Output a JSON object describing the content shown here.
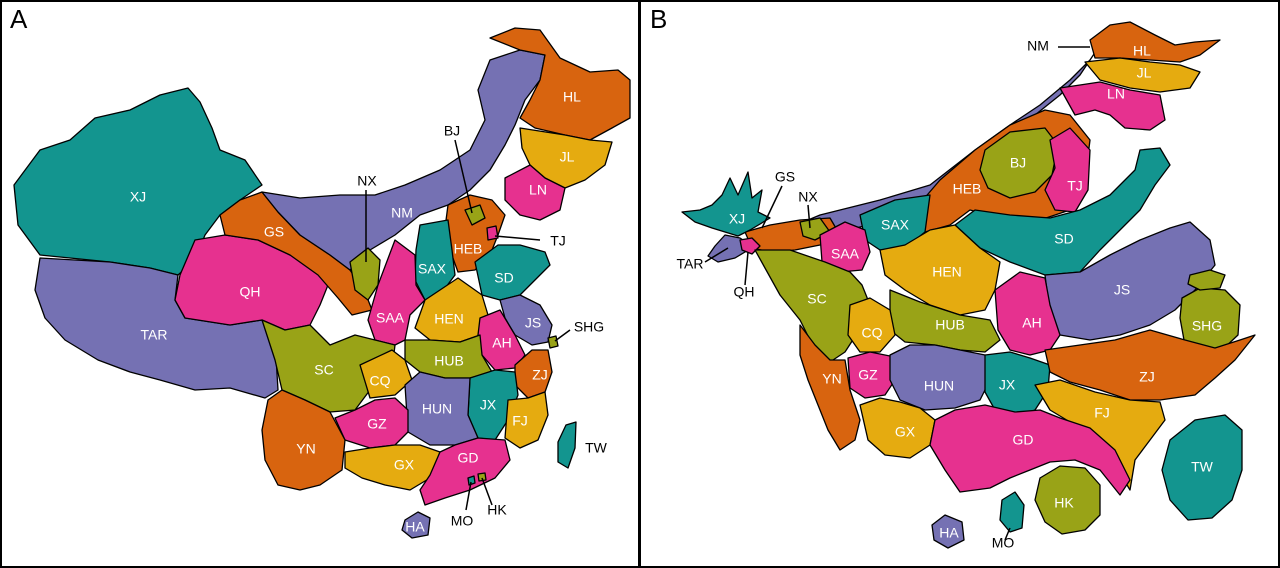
{
  "panels": [
    {
      "letter": "A",
      "regions": [
        "XJ",
        "GS",
        "NM",
        "HL",
        "JL",
        "LN",
        "BJ",
        "TJ",
        "HEB",
        "SAX",
        "SD",
        "NX",
        "QH",
        "TAR",
        "SAA",
        "HEN",
        "JS",
        "SHG",
        "AH",
        "HUB",
        "SC",
        "CQ",
        "ZJ",
        "JX",
        "HUN",
        "GZ",
        "FJ",
        "TW",
        "YN",
        "GX",
        "GD",
        "MO",
        "HK",
        "HA"
      ]
    },
    {
      "letter": "B",
      "regions": [
        "NM",
        "HL",
        "JL",
        "LN",
        "BJ",
        "TJ",
        "HEB",
        "GS",
        "NX",
        "XJ",
        "TAR",
        "QH",
        "SAX",
        "SAA",
        "HEN",
        "SD",
        "JS",
        "SHG",
        "SC",
        "CQ",
        "HUB",
        "AH",
        "YN",
        "GZ",
        "HUN",
        "JX",
        "ZJ",
        "FJ",
        "GX",
        "GD",
        "TW",
        "HK",
        "HA",
        "MO"
      ]
    }
  ],
  "colors": {
    "teal": "#13958f",
    "purple": "#7571b3",
    "orange": "#d8640f",
    "magenta": "#e6318f",
    "olive": "#99a317",
    "gold": "#e5ab10"
  }
}
